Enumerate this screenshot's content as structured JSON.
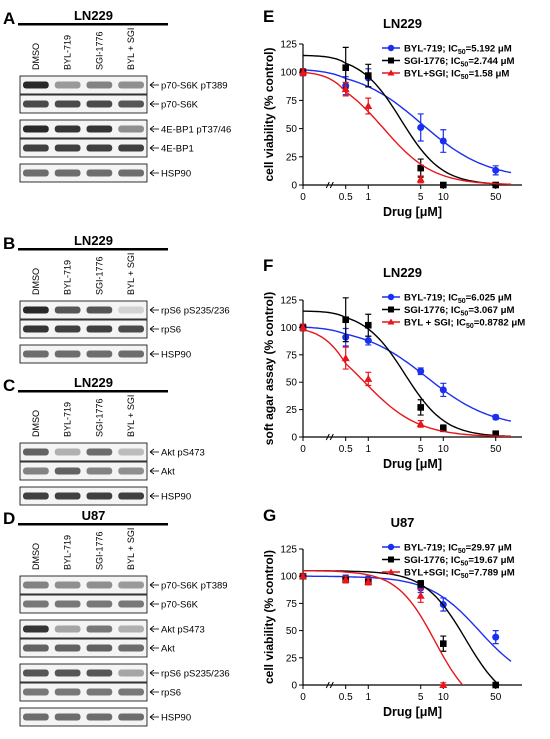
{
  "left_panels": [
    {
      "letter": "A",
      "cell_line": "LN229",
      "lanes": [
        "DMSO",
        "BYL-719",
        "SGI-1776",
        "BYL + SGI"
      ],
      "blots": [
        {
          "label": "p70-S6K pT389",
          "int": [
            0.95,
            0.45,
            0.55,
            0.5
          ],
          "gap": 0
        },
        {
          "label": "p70-S6K",
          "int": [
            0.8,
            0.8,
            0.8,
            0.75
          ],
          "gap": 0
        },
        {
          "label": "4E-BP1 pT37/46",
          "int": [
            0.95,
            0.9,
            0.9,
            0.5
          ],
          "gap": 1
        },
        {
          "label": "4E-BP1",
          "int": [
            0.85,
            0.85,
            0.85,
            0.85
          ],
          "gap": 0
        },
        {
          "label": "HSP90",
          "int": [
            0.65,
            0.65,
            0.65,
            0.65
          ],
          "gap": 1
        }
      ]
    },
    {
      "letter": "B",
      "cell_line": "LN229",
      "lanes": [
        "DMSO",
        "BYL-719",
        "SGI-1776",
        "BYL + SGI"
      ],
      "blots": [
        {
          "label": "rpS6 pS235/236",
          "int": [
            0.95,
            0.75,
            0.75,
            0.2
          ],
          "gap": 0
        },
        {
          "label": "rpS6",
          "int": [
            0.9,
            0.85,
            0.85,
            0.8
          ],
          "gap": 0
        },
        {
          "label": "HSP90",
          "int": [
            0.65,
            0.65,
            0.65,
            0.65
          ],
          "gap": 1
        }
      ]
    },
    {
      "letter": "C",
      "cell_line": "LN229",
      "lanes": [
        "DMSO",
        "BYL-719",
        "SGI-1776",
        "BYL + SGI"
      ],
      "blots": [
        {
          "label": "Akt pS473",
          "int": [
            0.7,
            0.35,
            0.65,
            0.3
          ],
          "gap": 0
        },
        {
          "label": "Akt",
          "int": [
            0.55,
            0.7,
            0.55,
            0.5
          ],
          "gap": 0
        },
        {
          "label": "HSP90",
          "int": [
            0.85,
            0.85,
            0.85,
            0.85
          ],
          "gap": 1
        }
      ]
    },
    {
      "letter": "D",
      "cell_line": "U87",
      "lanes": [
        "DMSO",
        "BYL-719",
        "SGI-1776",
        "BYL + SGI"
      ],
      "blots": [
        {
          "label": "p70-S6K pT389",
          "int": [
            0.55,
            0.5,
            0.5,
            0.45
          ],
          "gap": 0
        },
        {
          "label": "p70-S6K",
          "int": [
            0.6,
            0.6,
            0.6,
            0.6
          ],
          "gap": 0
        },
        {
          "label": "Akt pS473",
          "int": [
            0.9,
            0.4,
            0.6,
            0.35
          ],
          "gap": 1
        },
        {
          "label": "Akt",
          "int": [
            0.7,
            0.7,
            0.7,
            0.65
          ],
          "gap": 0
        },
        {
          "label": "rpS6 pS235/236",
          "int": [
            0.75,
            0.75,
            0.75,
            0.4
          ],
          "gap": 1
        },
        {
          "label": "rpS6",
          "int": [
            0.6,
            0.6,
            0.6,
            0.6
          ],
          "gap": 0
        },
        {
          "label": "HSP90",
          "int": [
            0.65,
            0.65,
            0.65,
            0.65
          ],
          "gap": 1
        }
      ]
    }
  ],
  "chart_data": [
    {
      "letter": "E",
      "type": "line",
      "title": "LN229",
      "xlabel": "Drug [μM]",
      "ylabel": "cell viability (% control)",
      "xticks": [
        "0",
        "0.5",
        "1",
        "5",
        "10",
        "50"
      ],
      "yticks": [
        0,
        25,
        50,
        75,
        100,
        125
      ],
      "ylim": [
        0,
        125
      ],
      "series": [
        {
          "name": "BYL-719; IC50=5.192 μM",
          "name_pre": "BYL-719; IC",
          "name_sub": "50",
          "name_post": "=5.192 μM",
          "color": "#1a2ff0",
          "marker": "circle",
          "points": [
            [
              0,
              100
            ],
            [
              0.5,
              88
            ],
            [
              1,
              95
            ],
            [
              5,
              51
            ],
            [
              10,
              39
            ],
            [
              50,
              13
            ]
          ],
          "errors": [
            3,
            8,
            8,
            12,
            10,
            4
          ],
          "fit_ic50": 5.192,
          "fit_top": 103,
          "fit_bottom": 5,
          "fit_hill": 1.0
        },
        {
          "name": "SGI-1776; IC50=2.744 μM",
          "name_pre": "SGI-1776; IC",
          "name_sub": "50",
          "name_post": "=2.744 μM",
          "color": "#000000",
          "marker": "square",
          "points": [
            [
              0,
              100
            ],
            [
              0.5,
              104
            ],
            [
              1,
              97
            ],
            [
              5,
              15
            ],
            [
              10,
              0
            ],
            [
              50,
              0
            ]
          ],
          "errors": [
            3,
            18,
            10,
            8,
            2,
            2
          ],
          "fit_ic50": 2.744,
          "fit_top": 115,
          "fit_bottom": 0,
          "fit_hill": 1.6
        },
        {
          "name": "BYL+SGI; IC50=1.58 μM",
          "name_pre": "BYL+SGI; IC",
          "name_sub": "50",
          "name_post": "=1.58 μM",
          "color": "#e8151b",
          "marker": "triangle",
          "points": [
            [
              0,
              100
            ],
            [
              0.5,
              85
            ],
            [
              1,
              70
            ],
            [
              5,
              5
            ]
          ],
          "errors": [
            3,
            6,
            7,
            3
          ],
          "fit_ic50": 1.58,
          "fit_top": 101,
          "fit_bottom": 0,
          "fit_hill": 1.3
        }
      ]
    },
    {
      "letter": "F",
      "type": "line",
      "title": "LN229",
      "xlabel": "Drug [μM]",
      "ylabel": "soft agar assay (% control)",
      "xticks": [
        "0",
        "0.5",
        "1",
        "5",
        "10",
        "50"
      ],
      "yticks": [
        0,
        25,
        50,
        75,
        100,
        125
      ],
      "ylim": [
        0,
        125
      ],
      "series": [
        {
          "name": "BYL-719; IC50=6.025 μM",
          "name_pre": "BYL-719;  IC",
          "name_sub": "50",
          "name_post": "=6.025 μM",
          "color": "#1a2ff0",
          "marker": "circle",
          "points": [
            [
              0,
              100
            ],
            [
              0.5,
              91
            ],
            [
              1,
              88
            ],
            [
              5,
              60
            ],
            [
              10,
              43
            ],
            [
              50,
              18
            ]
          ],
          "errors": [
            3,
            8,
            4,
            3,
            6,
            2
          ],
          "fit_ic50": 6.025,
          "fit_top": 101,
          "fit_bottom": 8,
          "fit_hill": 1.0
        },
        {
          "name": "SGI-1776; IC50=3.067 μM",
          "name_pre": "SGI-1776;  IC",
          "name_sub": "50",
          "name_post": "=3.067 μM",
          "color": "#000000",
          "marker": "square",
          "points": [
            [
              0,
              100
            ],
            [
              0.5,
              107
            ],
            [
              1,
              102
            ],
            [
              5,
              27
            ],
            [
              10,
              8
            ],
            [
              50,
              3
            ]
          ],
          "errors": [
            3,
            20,
            10,
            7,
            3,
            2
          ],
          "fit_ic50": 3.067,
          "fit_top": 115,
          "fit_bottom": 0,
          "fit_hill": 1.6
        },
        {
          "name": "BYL + SGI; IC50=0.8782 μM",
          "name_pre": "BYL + SGI;  IC",
          "name_sub": "50",
          "name_post": "=0.8782 μM",
          "color": "#e8151b",
          "marker": "triangle",
          "points": [
            [
              0,
              100
            ],
            [
              0.5,
              72
            ],
            [
              1,
              53
            ],
            [
              5,
              12
            ]
          ],
          "errors": [
            3,
            10,
            6,
            3
          ],
          "fit_ic50": 0.8782,
          "fit_top": 101,
          "fit_bottom": 0,
          "fit_hill": 1.2
        }
      ]
    },
    {
      "letter": "G",
      "type": "line",
      "title": "U87",
      "xlabel": "Drug [μM]",
      "ylabel": "cell viability (% control)",
      "xticks": [
        "0",
        "0.5",
        "1",
        "5",
        "10",
        "50"
      ],
      "yticks": [
        0,
        25,
        50,
        75,
        100,
        125
      ],
      "ylim": [
        0,
        125
      ],
      "series": [
        {
          "name": "BYL-719; IC50=29.97 μM",
          "name_pre": "BYL-719; IC",
          "name_sub": "50",
          "name_post": "=29.97 μM",
          "color": "#1a2ff0",
          "marker": "circle",
          "points": [
            [
              0,
              100
            ],
            [
              0.5,
              98
            ],
            [
              1,
              97
            ],
            [
              5,
              89
            ],
            [
              10,
              74
            ],
            [
              50,
              44
            ]
          ],
          "errors": [
            2,
            3,
            3,
            4,
            6,
            6
          ],
          "fit_ic50": 29.97,
          "fit_top": 100,
          "fit_bottom": 0,
          "fit_hill": 1.3
        },
        {
          "name": "SGI-1776; IC50=19.67 μM",
          "name_pre": "SGI-1776; IC",
          "name_sub": "50",
          "name_post": "=19.67 μM",
          "color": "#000000",
          "marker": "square",
          "points": [
            [
              0,
              100
            ],
            [
              0.5,
              97
            ],
            [
              1,
              95
            ],
            [
              5,
              93
            ],
            [
              10,
              38
            ],
            [
              50,
              0
            ]
          ],
          "errors": [
            2,
            3,
            3,
            3,
            7,
            2
          ],
          "fit_ic50": 19.67,
          "fit_top": 105,
          "fit_bottom": -20,
          "fit_hill": 1.6
        },
        {
          "name": "BYL+SGI; IC50=7.789 μM",
          "name_pre": "BYL+SGI; IC",
          "name_sub": "50",
          "name_post": "=7.789 μM",
          "color": "#e8151b",
          "marker": "triangle",
          "points": [
            [
              0,
              100
            ],
            [
              0.5,
              97
            ],
            [
              1,
              95
            ],
            [
              5,
              82
            ],
            [
              10,
              0
            ]
          ],
          "errors": [
            2,
            3,
            3,
            6,
            2
          ],
          "fit_ic50": 7.789,
          "fit_top": 105,
          "fit_bottom": -25,
          "fit_hill": 1.7
        }
      ]
    }
  ]
}
